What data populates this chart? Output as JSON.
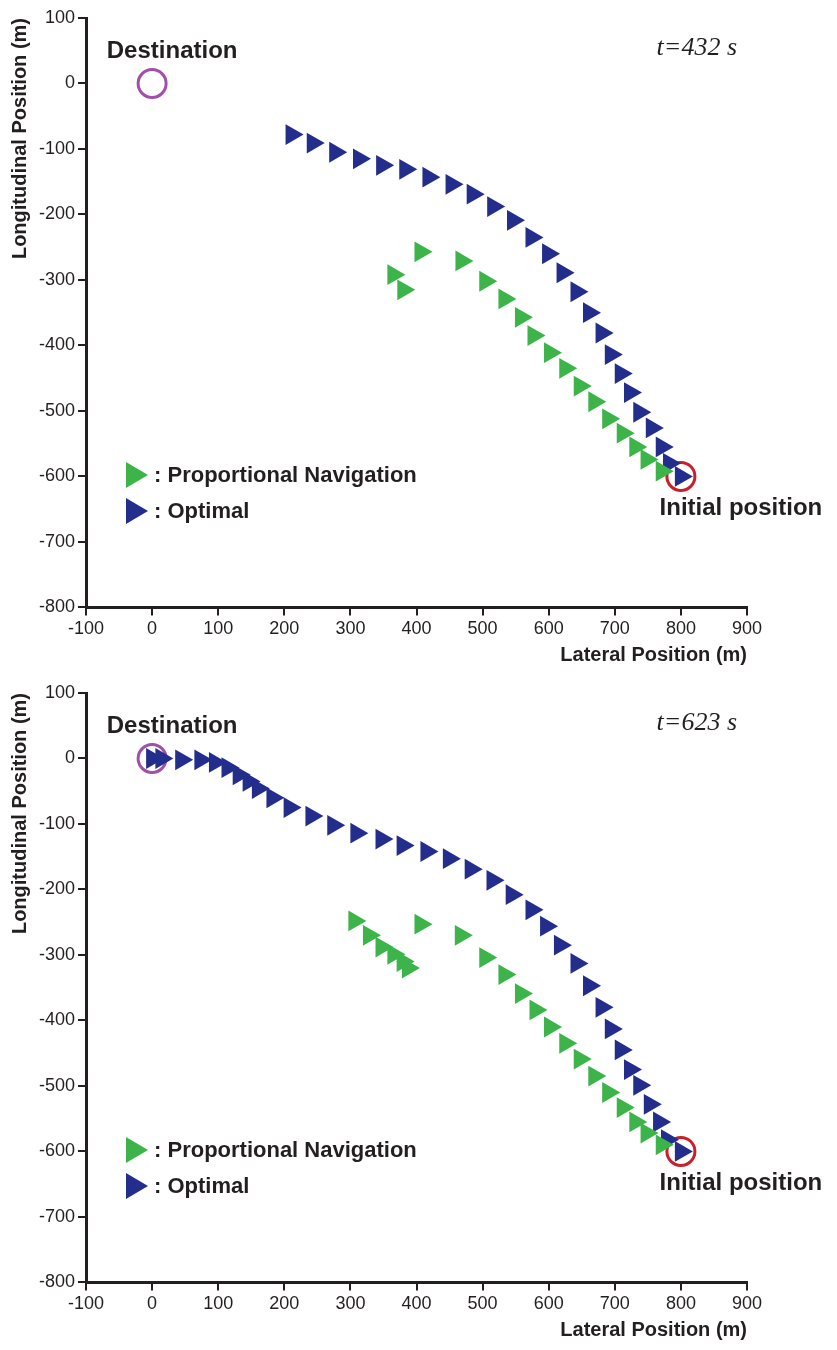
{
  "chart_data": [
    {
      "type": "scatter",
      "xlabel": "Lateral Position (m)",
      "ylabel": "Longitudinal Position (m)",
      "annotations": [
        "t=432 s"
      ],
      "xlim": [
        -100,
        900
      ],
      "ylim": [
        -800,
        100
      ],
      "xticks": [
        -100,
        0,
        100,
        200,
        300,
        400,
        500,
        600,
        700,
        800,
        900
      ],
      "yticks": [
        -800,
        -700,
        -600,
        -500,
        -400,
        -300,
        -200,
        -100,
        0,
        100
      ],
      "grid": false,
      "legend": "bottom left",
      "marker": "triangle",
      "series": [
        {
          "name": ": Proportional Navigation",
          "color": "#3cb44a",
          "x": [
            365,
            380,
            406,
            468,
            504,
            533,
            558,
            577,
            602,
            625,
            647,
            669,
            690,
            712,
            731,
            748,
            771
          ],
          "values": [
            -292,
            -315,
            -257,
            -271,
            -302,
            -329,
            -357,
            -385,
            -411,
            -435,
            -462,
            -486,
            -512,
            -534,
            -555,
            -574,
            -592
          ]
        },
        {
          "name": ": Optimal",
          "color": "#232e8c",
          "x": [
            211,
            243,
            277,
            313,
            348,
            383,
            418,
            453,
            485,
            516,
            546,
            574,
            599,
            621,
            642,
            661,
            680,
            694,
            709,
            723,
            737,
            756,
            771,
            782,
            800
          ],
          "values": [
            -78,
            -91,
            -105,
            -115,
            -125,
            -131,
            -143,
            -154,
            -169,
            -188,
            -209,
            -235,
            -260,
            -289,
            -318,
            -350,
            -381,
            -414,
            -443,
            -472,
            -502,
            -526,
            -555,
            -580,
            -600
          ]
        },
        {
          "name": "Destination",
          "color": "#a050a8",
          "marker": "circle",
          "x": [
            0
          ],
          "values": [
            0
          ]
        },
        {
          "name": "Initial position",
          "color": "#c8202a",
          "marker": "circle",
          "x": [
            800
          ],
          "values": [
            -600
          ]
        }
      ]
    },
    {
      "type": "scatter",
      "xlabel": "Lateral Position (m)",
      "ylabel": "Longitudinal Position (m)",
      "annotations": [
        "t=623 s"
      ],
      "xlim": [
        -100,
        900
      ],
      "ylim": [
        -800,
        100
      ],
      "xticks": [
        -100,
        0,
        100,
        200,
        300,
        400,
        500,
        600,
        700,
        800,
        900
      ],
      "yticks": [
        -800,
        -700,
        -600,
        -500,
        -400,
        -300,
        -200,
        -100,
        0,
        100
      ],
      "grid": false,
      "legend": "bottom left",
      "marker": "triangle",
      "series": [
        {
          "name": ": Proportional Navigation",
          "color": "#3cb44a",
          "x": [
            306,
            328,
            347,
            365,
            379,
            387,
            406,
            467,
            504,
            533,
            558,
            580,
            602,
            625,
            647,
            669,
            690,
            712,
            731,
            748,
            771
          ],
          "values": [
            -248,
            -270,
            -288,
            -299,
            -310,
            -320,
            -253,
            -270,
            -304,
            -330,
            -359,
            -384,
            -410,
            -435,
            -459,
            -485,
            -510,
            -533,
            -555,
            -572,
            -590
          ]
        },
        {
          "name": ": Optimal",
          "color": "#232e8c",
          "x": [
            0,
            14,
            44,
            73,
            95,
            114,
            131,
            146,
            160,
            182,
            208,
            241,
            274,
            309,
            347,
            379,
            415,
            449,
            482,
            515,
            544,
            574,
            596,
            617,
            642,
            661,
            680,
            694,
            709,
            723,
            737,
            753,
            767,
            779,
            800
          ],
          "values": [
            0,
            0,
            -2,
            -2,
            -6,
            -14,
            -25,
            -35,
            -46,
            -60,
            -75,
            -88,
            -102,
            -114,
            -123,
            -133,
            -142,
            -153,
            -169,
            -186,
            -208,
            -231,
            -256,
            -285,
            -313,
            -347,
            -380,
            -413,
            -445,
            -475,
            -499,
            -528,
            -555,
            -582,
            -600
          ]
        },
        {
          "name": "Destination",
          "color": "#a050a8",
          "marker": "circle",
          "x": [
            0
          ],
          "values": [
            0
          ]
        },
        {
          "name": "Initial position",
          "color": "#c8202a",
          "marker": "circle",
          "x": [
            800
          ],
          "values": [
            -600
          ]
        }
      ]
    }
  ]
}
